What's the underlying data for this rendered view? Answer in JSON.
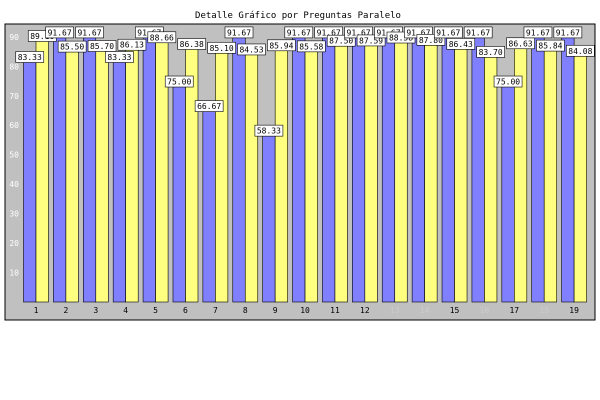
{
  "chart_data": {
    "type": "bar",
    "title": "Detalle Gráfico por Preguntas Paralelo",
    "xlabel": "",
    "ylabel": "",
    "ylim": [
      0,
      93
    ],
    "yticks": [
      10,
      20,
      30,
      40,
      50,
      60,
      70,
      80,
      90
    ],
    "categories": [
      "1",
      "2",
      "3",
      "4",
      "5",
      "6",
      "7",
      "8",
      "9",
      "10",
      "11",
      "12",
      "13",
      "14",
      "15",
      "16",
      "17",
      "18",
      "19"
    ],
    "category_label_colors": [
      "#000000",
      "#000000",
      "#000000",
      "#000000",
      "#000000",
      "#000000",
      "#000000",
      "#000000",
      "#000000",
      "#000000",
      "#000000",
      "#000000",
      "#cccccc",
      "#cccccc",
      "#000000",
      "#cccccc",
      "#000000",
      "#cccccc",
      "#000000"
    ],
    "grid": false,
    "legend": "none",
    "series": [
      {
        "color": "#8080ff",
        "values": [
          83.33,
          91.67,
          91.67,
          83.33,
          91.67,
          75.0,
          66.67,
          91.67,
          58.33,
          91.67,
          91.67,
          91.67,
          91.67,
          91.67,
          91.67,
          91.67,
          75.0,
          91.67,
          91.67
        ]
      },
      {
        "color": "#ffff80",
        "values": [
          89.1,
          85.5,
          85.7,
          86.13,
          88.66,
          86.38,
          85.1,
          84.53,
          85.94,
          85.58,
          87.5,
          87.59,
          88.58,
          87.8,
          86.43,
          83.7,
          86.63,
          85.84,
          84.08
        ]
      }
    ],
    "colors": {
      "plot_background": "#c0c0c0",
      "frame": "#000000",
      "bar_outline": "#000000"
    }
  }
}
